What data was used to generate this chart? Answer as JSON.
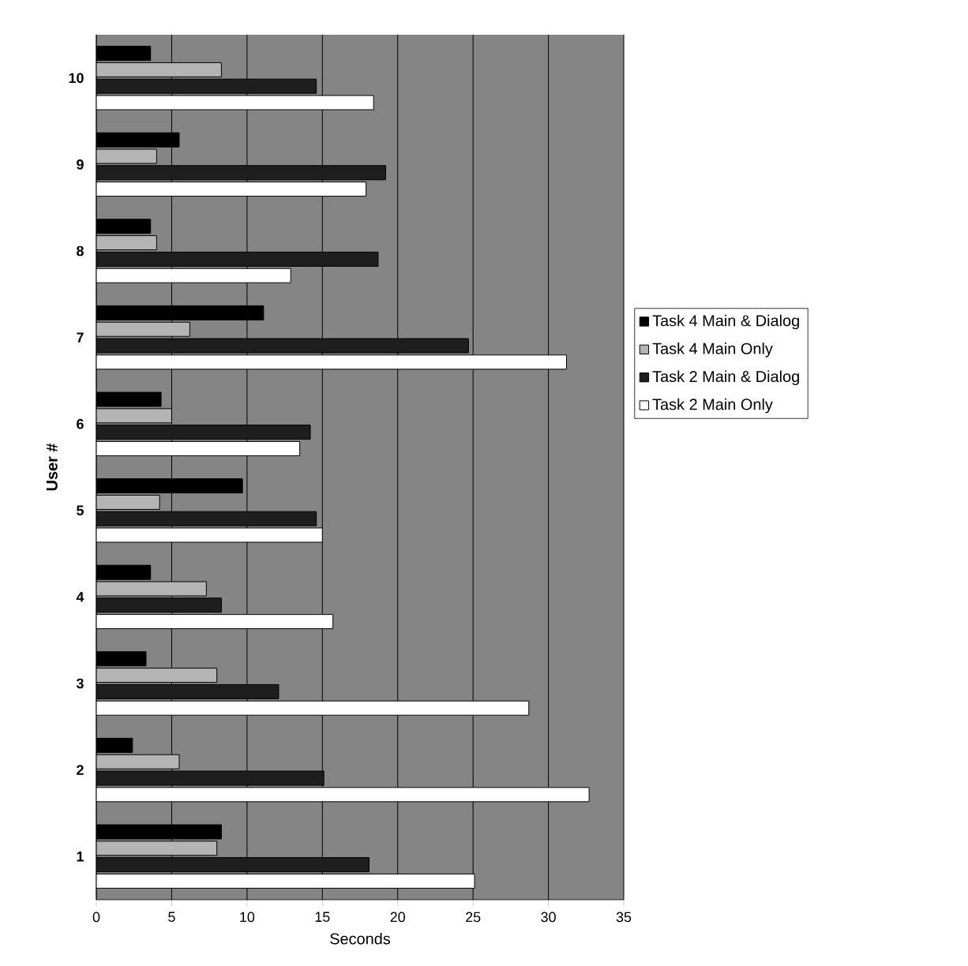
{
  "chart_data": {
    "type": "bar",
    "orientation": "horizontal",
    "xlabel": "Seconds",
    "ylabel": "User #",
    "categories": [
      "10",
      "9",
      "8",
      "7",
      "6",
      "5",
      "4",
      "3",
      "2",
      "1"
    ],
    "series": [
      {
        "name": "Task 4 Main & Dialog",
        "color": "#000000",
        "values": [
          3.6,
          5.5,
          3.6,
          11.1,
          4.3,
          9.7,
          3.6,
          3.3,
          2.4,
          8.3
        ]
      },
      {
        "name": "Task 4 Main Only",
        "color": "#b4b4b4",
        "values": [
          8.3,
          4,
          4,
          6.2,
          5,
          4.2,
          7.3,
          8.0,
          5.5,
          8
        ]
      },
      {
        "name": "Task 2 Main & Dialog",
        "color": "#1e1e1e",
        "values": [
          14.6,
          19.2,
          18.7,
          24.7,
          14.2,
          14.6,
          8.3,
          12.1,
          15.1,
          18.1
        ]
      },
      {
        "name": "Task 2 Main Only",
        "color": "#ffffff",
        "values": [
          18.4,
          17.9,
          12.9,
          31.2,
          13.5,
          15.0,
          15.7,
          28.7,
          32.7,
          25.1
        ]
      }
    ],
    "xlim": [
      0,
      35
    ],
    "xticks": [
      0,
      5,
      10,
      15,
      20,
      25,
      30,
      35
    ],
    "grid": "x",
    "legend": "right"
  }
}
